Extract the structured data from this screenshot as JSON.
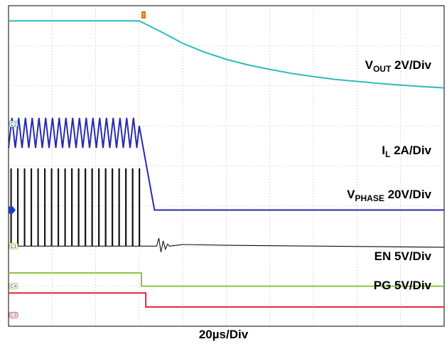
{
  "chart_data": {
    "type": "line",
    "grid": true,
    "grid_divisions": {
      "x": 10,
      "y": 8
    },
    "x_unit": "µs",
    "x_range": [
      0,
      200
    ],
    "trigger_marker": "T",
    "trigger_x": 62,
    "timebase": "20µs/Div",
    "series": [
      {
        "name": "VOUT",
        "label_main": "V",
        "label_sub": "OUT",
        "label_scale": " 2V/Div",
        "color": "#2ebbbb",
        "channel_marker": "C2",
        "marker_color": "#2ebbbb",
        "marker_shape": "box",
        "x": [
          0,
          60,
          70,
          80,
          90,
          100,
          110,
          120,
          130,
          140,
          150,
          160,
          170,
          180,
          190,
          200
        ],
        "y": [
          7.62,
          7.62,
          7.35,
          7.06,
          6.84,
          6.66,
          6.52,
          6.41,
          6.31,
          6.23,
          6.16,
          6.11,
          6.06,
          6.02,
          5.98,
          5.95
        ]
      },
      {
        "name": "IL",
        "label_main": "I",
        "label_sub": "L",
        "label_scale": " 2A/Div",
        "color": "#2a2ab0",
        "channel_marker": "",
        "marker_color": "#1a3fbf",
        "marker_shape": "arrow",
        "ripple": {
          "x_start": 0,
          "x_end": 60,
          "period": 3.1,
          "high": 5.2,
          "low": 4.45
        },
        "x": [
          60,
          67,
          200
        ],
        "y": [
          5.0,
          2.9,
          2.9
        ]
      },
      {
        "name": "VPHASE",
        "label_main": "V",
        "label_sub": "PHASE",
        "label_scale": " 20V/Div",
        "color": "#111111",
        "channel_marker": "C1",
        "marker_color": "#c8b400",
        "marker_shape": "box",
        "pulses": {
          "x_start": 1,
          "x_end": 60,
          "period": 3.1,
          "high": 3.93,
          "low": 2.0
        },
        "x": [
          60,
          68,
          69,
          70,
          71,
          72,
          73,
          74,
          80,
          100,
          200
        ],
        "y": [
          2.0,
          2.0,
          2.2,
          1.85,
          2.13,
          1.92,
          2.05,
          2.0,
          2.04,
          2.02,
          1.97
        ]
      },
      {
        "name": "EN",
        "label_main": "EN",
        "label_sub": "",
        "label_scale": " 5V/Div",
        "color": "#8cc63f",
        "channel_marker": "C4",
        "marker_color": "#8cc63f",
        "marker_shape": "box",
        "x": [
          0,
          61,
          61,
          200
        ],
        "y": [
          1.33,
          1.33,
          1.0,
          1.0
        ]
      },
      {
        "name": "PG",
        "label_main": "PG",
        "label_sub": "",
        "label_scale": " 5V/Div",
        "color": "#e8203a",
        "channel_marker": "C3",
        "marker_color": "#e8203a",
        "marker_shape": "box",
        "x": [
          0,
          63,
          63,
          200
        ],
        "y": [
          0.83,
          0.83,
          0.48,
          0.48
        ]
      }
    ]
  }
}
